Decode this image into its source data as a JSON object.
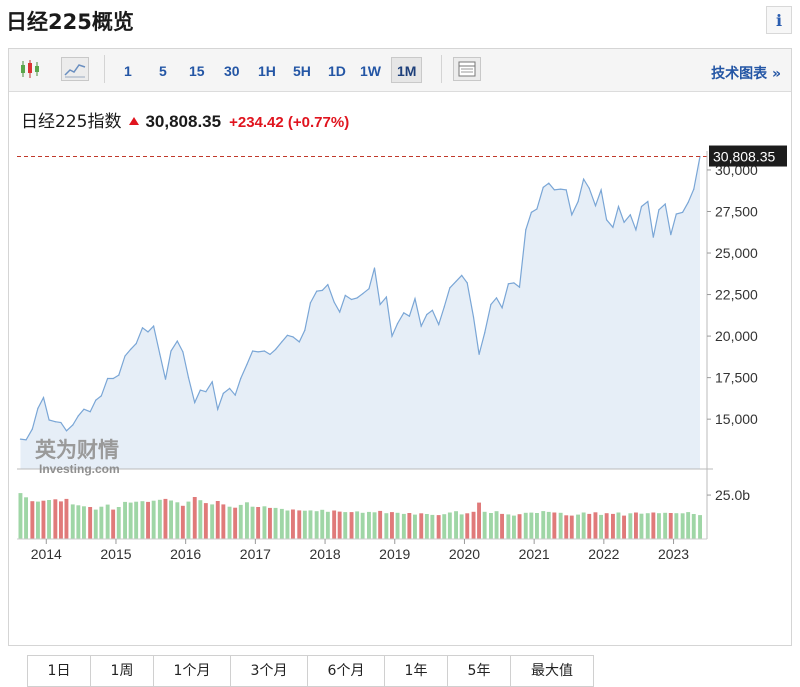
{
  "header": {
    "title": "日经225概览",
    "info_label": "i"
  },
  "toolbar": {
    "timeframes": [
      "1",
      "5",
      "15",
      "30",
      "1H",
      "5H",
      "1D",
      "1W",
      "1M"
    ],
    "active_timeframe": "1M",
    "tech_chart_link": "技术图表 »"
  },
  "quote": {
    "name": "日经225指数",
    "price": "30,808.35",
    "change": "+234.42",
    "change_pct": "(+0.77%)",
    "up_color": "#e0141e"
  },
  "watermark": {
    "cn": "英为财情",
    "en": "Investing.com"
  },
  "range_buttons": [
    "1日",
    "1周",
    "1个月",
    "3个月",
    "6个月",
    "1年",
    "5年",
    "最大值"
  ],
  "chart_data": {
    "type": "area",
    "y_axis": {
      "ticks": [
        15000,
        17500,
        20000,
        22500,
        25000,
        27500,
        30000
      ],
      "tick_labels": [
        "15,000",
        "17,500",
        "20,000",
        "22,500",
        "25,000",
        "27,500",
        "30,000"
      ],
      "ylim": [
        12000,
        30900
      ],
      "position": "right"
    },
    "x_axis": {
      "tick_labels": [
        "2014",
        "2015",
        "2016",
        "2017",
        "2018",
        "2019",
        "2020",
        "2021",
        "2022",
        "2023"
      ],
      "tick_positions": [
        2014.0,
        2015.0,
        2016.0,
        2017.0,
        2018.0,
        2019.0,
        2020.0,
        2021.0,
        2022.0,
        2023.0
      ],
      "xlim": [
        2013.58,
        2023.48
      ]
    },
    "last_price_label": "30,808.35",
    "last_price_value": 30808.35,
    "series": [
      {
        "values": [
          [
            2013.63,
            13800
          ],
          [
            2013.71,
            13750
          ],
          [
            2013.8,
            14400
          ],
          [
            2013.88,
            15650
          ],
          [
            2013.96,
            16300
          ],
          [
            2014.04,
            14950
          ],
          [
            2014.13,
            14850
          ],
          [
            2014.21,
            14800
          ],
          [
            2014.29,
            14300
          ],
          [
            2014.38,
            14650
          ],
          [
            2014.46,
            15200
          ],
          [
            2014.54,
            15600
          ],
          [
            2014.63,
            15450
          ],
          [
            2014.71,
            16150
          ],
          [
            2014.79,
            16400
          ],
          [
            2014.88,
            17450
          ],
          [
            2014.96,
            17450
          ],
          [
            2015.04,
            17650
          ],
          [
            2015.13,
            18800
          ],
          [
            2015.21,
            19200
          ],
          [
            2015.29,
            19550
          ],
          [
            2015.38,
            20500
          ],
          [
            2015.46,
            20250
          ],
          [
            2015.54,
            20600
          ],
          [
            2015.63,
            18900
          ],
          [
            2015.71,
            17400
          ],
          [
            2015.79,
            19100
          ],
          [
            2015.88,
            19700
          ],
          [
            2015.96,
            19050
          ],
          [
            2016.04,
            17500
          ],
          [
            2016.13,
            16000
          ],
          [
            2016.21,
            16750
          ],
          [
            2016.29,
            16650
          ],
          [
            2016.38,
            17250
          ],
          [
            2016.46,
            15600
          ],
          [
            2016.54,
            16550
          ],
          [
            2016.63,
            16850
          ],
          [
            2016.71,
            16450
          ],
          [
            2016.79,
            17450
          ],
          [
            2016.88,
            18300
          ],
          [
            2016.96,
            19100
          ],
          [
            2017.04,
            19050
          ],
          [
            2017.13,
            19100
          ],
          [
            2017.21,
            18900
          ],
          [
            2017.29,
            19200
          ],
          [
            2017.38,
            19650
          ],
          [
            2017.46,
            20050
          ],
          [
            2017.54,
            19950
          ],
          [
            2017.63,
            19650
          ],
          [
            2017.71,
            20350
          ],
          [
            2017.79,
            22000
          ],
          [
            2017.88,
            22700
          ],
          [
            2017.96,
            22750
          ],
          [
            2018.04,
            23100
          ],
          [
            2018.13,
            22050
          ],
          [
            2018.21,
            21450
          ],
          [
            2018.29,
            22450
          ],
          [
            2018.38,
            22200
          ],
          [
            2018.46,
            22300
          ],
          [
            2018.54,
            22550
          ],
          [
            2018.63,
            22850
          ],
          [
            2018.71,
            24100
          ],
          [
            2018.79,
            21900
          ],
          [
            2018.88,
            22350
          ],
          [
            2018.96,
            20000
          ],
          [
            2019.04,
            20750
          ],
          [
            2019.13,
            21400
          ],
          [
            2019.21,
            21200
          ],
          [
            2019.29,
            22250
          ],
          [
            2019.38,
            20600
          ],
          [
            2019.46,
            21300
          ],
          [
            2019.54,
            21550
          ],
          [
            2019.63,
            20700
          ],
          [
            2019.71,
            21750
          ],
          [
            2019.79,
            22900
          ],
          [
            2019.88,
            23300
          ],
          [
            2019.96,
            23650
          ],
          [
            2020.04,
            23200
          ],
          [
            2020.13,
            21150
          ],
          [
            2020.21,
            18900
          ],
          [
            2020.29,
            20200
          ],
          [
            2020.38,
            21900
          ],
          [
            2020.46,
            22300
          ],
          [
            2020.54,
            21700
          ],
          [
            2020.63,
            23150
          ],
          [
            2020.71,
            23200
          ],
          [
            2020.79,
            22950
          ],
          [
            2020.88,
            26400
          ],
          [
            2020.96,
            27450
          ],
          [
            2021.04,
            27650
          ],
          [
            2021.13,
            28950
          ],
          [
            2021.21,
            29200
          ],
          [
            2021.29,
            28800
          ],
          [
            2021.38,
            28850
          ],
          [
            2021.46,
            28800
          ],
          [
            2021.54,
            27300
          ],
          [
            2021.63,
            28100
          ],
          [
            2021.71,
            29450
          ],
          [
            2021.79,
            28900
          ],
          [
            2021.88,
            27850
          ],
          [
            2021.96,
            28800
          ],
          [
            2022.04,
            27000
          ],
          [
            2022.13,
            26550
          ],
          [
            2022.21,
            27800
          ],
          [
            2022.29,
            26850
          ],
          [
            2022.38,
            27300
          ],
          [
            2022.46,
            26400
          ],
          [
            2022.54,
            27800
          ],
          [
            2022.63,
            28100
          ],
          [
            2022.71,
            25950
          ],
          [
            2022.79,
            27600
          ],
          [
            2022.88,
            27950
          ],
          [
            2022.96,
            26100
          ],
          [
            2023.04,
            27350
          ],
          [
            2023.13,
            27450
          ],
          [
            2023.21,
            28050
          ],
          [
            2023.29,
            28850
          ],
          [
            2023.38,
            30808
          ]
        ],
        "color": "#7aa6d6",
        "fill": "#e6eef7"
      }
    ],
    "volume": {
      "axis_label": "25.0b",
      "up_color": "#9fd6a6",
      "down_color": "#e07a7a",
      "values": [
        [
          2013.63,
          26.1,
          "up"
        ],
        [
          2013.71,
          23.7,
          "up"
        ],
        [
          2013.8,
          21.5,
          "down"
        ],
        [
          2013.88,
          21.3,
          "up"
        ],
        [
          2013.96,
          21.8,
          "down"
        ],
        [
          2014.04,
          22.2,
          "up"
        ],
        [
          2014.13,
          22.6,
          "down"
        ],
        [
          2014.21,
          21.4,
          "down"
        ],
        [
          2014.29,
          22.8,
          "down"
        ],
        [
          2014.38,
          19.7,
          "up"
        ],
        [
          2014.46,
          19.2,
          "up"
        ],
        [
          2014.54,
          18.6,
          "up"
        ],
        [
          2014.63,
          18.2,
          "down"
        ],
        [
          2014.71,
          16.7,
          "up"
        ],
        [
          2014.79,
          18.4,
          "up"
        ],
        [
          2014.88,
          19.6,
          "up"
        ],
        [
          2014.96,
          16.7,
          "down"
        ],
        [
          2015.04,
          18.2,
          "up"
        ],
        [
          2015.13,
          21.1,
          "up"
        ],
        [
          2015.21,
          20.7,
          "up"
        ],
        [
          2015.29,
          21.2,
          "up"
        ],
        [
          2015.38,
          21.5,
          "up"
        ],
        [
          2015.46,
          21.1,
          "down"
        ],
        [
          2015.54,
          21.8,
          "up"
        ],
        [
          2015.63,
          22.3,
          "up"
        ],
        [
          2015.71,
          22.8,
          "down"
        ],
        [
          2015.79,
          21.9,
          "up"
        ],
        [
          2015.88,
          20.9,
          "up"
        ],
        [
          2015.96,
          18.9,
          "down"
        ],
        [
          2016.04,
          21.3,
          "up"
        ],
        [
          2016.13,
          23.9,
          "down"
        ],
        [
          2016.21,
          22.1,
          "up"
        ],
        [
          2016.29,
          20.4,
          "down"
        ],
        [
          2016.38,
          19.7,
          "up"
        ],
        [
          2016.46,
          21.6,
          "down"
        ],
        [
          2016.54,
          19.7,
          "down"
        ],
        [
          2016.63,
          18.4,
          "up"
        ],
        [
          2016.71,
          17.8,
          "down"
        ],
        [
          2016.79,
          19.4,
          "up"
        ],
        [
          2016.88,
          20.9,
          "up"
        ],
        [
          2016.96,
          18.4,
          "up"
        ],
        [
          2017.04,
          18.2,
          "down"
        ],
        [
          2017.13,
          18.6,
          "up"
        ],
        [
          2017.21,
          17.7,
          "down"
        ],
        [
          2017.29,
          17.7,
          "up"
        ],
        [
          2017.38,
          17.1,
          "up"
        ],
        [
          2017.46,
          16.2,
          "up"
        ],
        [
          2017.54,
          16.8,
          "down"
        ],
        [
          2017.63,
          16.3,
          "down"
        ],
        [
          2017.71,
          16.1,
          "up"
        ],
        [
          2017.79,
          16.3,
          "up"
        ],
        [
          2017.88,
          15.8,
          "up"
        ],
        [
          2017.96,
          16.6,
          "up"
        ],
        [
          2018.04,
          15.5,
          "up"
        ],
        [
          2018.13,
          16.2,
          "down"
        ],
        [
          2018.21,
          15.6,
          "down"
        ],
        [
          2018.29,
          15.3,
          "up"
        ],
        [
          2018.38,
          15.3,
          "down"
        ],
        [
          2018.46,
          15.7,
          "up"
        ],
        [
          2018.54,
          14.9,
          "up"
        ],
        [
          2018.63,
          15.4,
          "up"
        ],
        [
          2018.71,
          15.2,
          "up"
        ],
        [
          2018.79,
          16.0,
          "down"
        ],
        [
          2018.88,
          14.7,
          "up"
        ],
        [
          2018.96,
          15.3,
          "down"
        ],
        [
          2019.04,
          14.9,
          "up"
        ],
        [
          2019.13,
          14.3,
          "up"
        ],
        [
          2019.21,
          14.8,
          "down"
        ],
        [
          2019.29,
          13.9,
          "up"
        ],
        [
          2019.38,
          14.6,
          "down"
        ],
        [
          2019.46,
          14.2,
          "up"
        ],
        [
          2019.54,
          13.7,
          "up"
        ],
        [
          2019.63,
          13.6,
          "down"
        ],
        [
          2019.71,
          14.1,
          "up"
        ],
        [
          2019.79,
          15.1,
          "up"
        ],
        [
          2019.88,
          15.8,
          "up"
        ],
        [
          2019.96,
          14.0,
          "up"
        ],
        [
          2020.04,
          14.6,
          "down"
        ],
        [
          2020.13,
          15.5,
          "down"
        ],
        [
          2020.21,
          20.7,
          "down"
        ],
        [
          2020.29,
          15.5,
          "up"
        ],
        [
          2020.38,
          14.8,
          "up"
        ],
        [
          2020.46,
          15.8,
          "up"
        ],
        [
          2020.54,
          14.3,
          "down"
        ],
        [
          2020.63,
          14.0,
          "up"
        ],
        [
          2020.71,
          13.3,
          "up"
        ],
        [
          2020.79,
          14.1,
          "down"
        ],
        [
          2020.88,
          14.9,
          "up"
        ],
        [
          2020.96,
          15.0,
          "up"
        ],
        [
          2021.04,
          14.8,
          "up"
        ],
        [
          2021.13,
          15.9,
          "up"
        ],
        [
          2021.21,
          15.4,
          "up"
        ],
        [
          2021.29,
          15.1,
          "down"
        ],
        [
          2021.38,
          14.9,
          "up"
        ],
        [
          2021.46,
          13.5,
          "down"
        ],
        [
          2021.54,
          13.3,
          "down"
        ],
        [
          2021.63,
          13.9,
          "up"
        ],
        [
          2021.71,
          15.1,
          "up"
        ],
        [
          2021.79,
          14.3,
          "down"
        ],
        [
          2021.88,
          15.2,
          "down"
        ],
        [
          2021.96,
          13.7,
          "up"
        ],
        [
          2022.04,
          14.7,
          "down"
        ],
        [
          2022.13,
          14.3,
          "down"
        ],
        [
          2022.21,
          15.1,
          "up"
        ],
        [
          2022.29,
          13.3,
          "down"
        ],
        [
          2022.38,
          14.6,
          "up"
        ],
        [
          2022.46,
          15.1,
          "down"
        ],
        [
          2022.54,
          14.4,
          "up"
        ],
        [
          2022.63,
          14.7,
          "up"
        ],
        [
          2022.71,
          15.1,
          "down"
        ],
        [
          2022.79,
          14.7,
          "up"
        ],
        [
          2022.88,
          14.9,
          "up"
        ],
        [
          2022.96,
          14.8,
          "down"
        ],
        [
          2023.04,
          14.7,
          "up"
        ],
        [
          2023.13,
          14.6,
          "up"
        ],
        [
          2023.21,
          15.3,
          "up"
        ],
        [
          2023.29,
          14.2,
          "up"
        ],
        [
          2023.38,
          13.6,
          "up"
        ]
      ],
      "axis_value": 25.0,
      "ylim": [
        0,
        33
      ]
    }
  }
}
